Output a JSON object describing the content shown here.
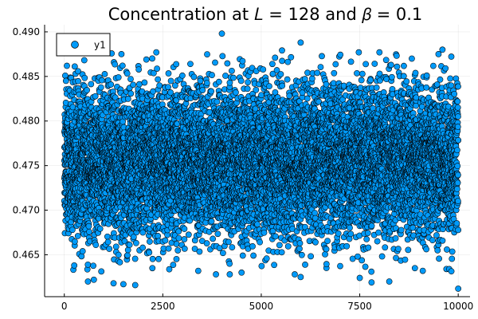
{
  "chart_data": {
    "type": "scatter",
    "title": "Concentration at 𝐿 = 128 and 𝛽 = 0.1",
    "xlabel": "",
    "ylabel": "",
    "xlim": [
      -500,
      10300
    ],
    "ylim": [
      0.4603,
      0.4908
    ],
    "xticks": [
      0,
      2500,
      5000,
      7500,
      10000
    ],
    "xtick_labels": [
      "0",
      "2500",
      "5000",
      "7500",
      "10000"
    ],
    "yticks": [
      0.465,
      0.47,
      0.475,
      0.48,
      0.485,
      0.49
    ],
    "ytick_labels": [
      "0.465",
      "0.470",
      "0.475",
      "0.480",
      "0.485",
      "0.490"
    ],
    "grid": true,
    "legend": {
      "placement": "top-left",
      "entries": [
        "y1"
      ]
    },
    "series": [
      {
        "name": "y1",
        "color": "#009af9",
        "edge_color": "#000000",
        "n_points": 10000,
        "x_range": [
          1,
          10000
        ],
        "distribution": {
          "center": 0.4755,
          "std": 0.0042,
          "min": 0.4612,
          "max": 0.4898
        },
        "notable_points": [
          {
            "x": 4000,
            "y": 0.4898
          },
          {
            "x": 6000,
            "y": 0.4888
          },
          {
            "x": 9600,
            "y": 0.488
          },
          {
            "x": 9500,
            "y": 0.4875
          },
          {
            "x": 8000,
            "y": 0.4877
          },
          {
            "x": 3200,
            "y": 0.4864
          },
          {
            "x": 1450,
            "y": 0.4875
          },
          {
            "x": 10000,
            "y": 0.4612
          },
          {
            "x": 1800,
            "y": 0.4616
          },
          {
            "x": 1250,
            "y": 0.4618
          },
          {
            "x": 1500,
            "y": 0.4617
          },
          {
            "x": 7800,
            "y": 0.4619
          },
          {
            "x": 8250,
            "y": 0.462
          },
          {
            "x": 8900,
            "y": 0.4635
          },
          {
            "x": 750,
            "y": 0.4622
          },
          {
            "x": 600,
            "y": 0.462
          },
          {
            "x": 4500,
            "y": 0.463
          },
          {
            "x": 4200,
            "y": 0.4628
          },
          {
            "x": 3400,
            "y": 0.4632
          },
          {
            "x": 3850,
            "y": 0.4628
          },
          {
            "x": 5850,
            "y": 0.4628
          },
          {
            "x": 6000,
            "y": 0.4625
          },
          {
            "x": 7500,
            "y": 0.4624
          },
          {
            "x": 9100,
            "y": 0.4632
          }
        ]
      }
    ]
  }
}
